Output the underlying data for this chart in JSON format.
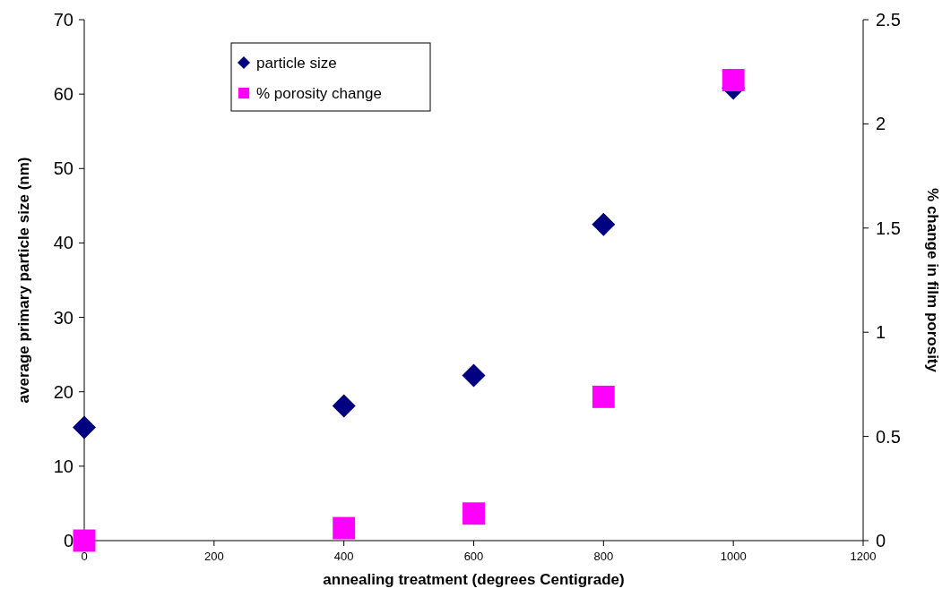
{
  "chart_data": {
    "type": "scatter",
    "xlabel": "annealing treatment (degrees Centigrade)",
    "ylabel": "average primary particle size (nm)",
    "y2label": "% change in film porosity",
    "xlim": [
      0,
      1200
    ],
    "xticks": [
      0,
      200,
      400,
      600,
      800,
      1000,
      1200
    ],
    "ylim": [
      0,
      70
    ],
    "yticks": [
      0,
      10,
      20,
      30,
      40,
      50,
      60,
      70
    ],
    "y2lim": [
      0,
      2.5
    ],
    "y2ticks": [
      0,
      0.5,
      1,
      1.5,
      2,
      2.5
    ],
    "legend": "top left",
    "grid": false,
    "x": [
      0,
      400,
      600,
      800,
      1000
    ],
    "series": [
      {
        "name": "particle size",
        "color": "#000080",
        "marker": "diamond",
        "values": [
          15.2,
          18.1,
          22.2,
          42.5,
          60.8
        ]
      },
      {
        "name": "% porosity change",
        "color": "#ff00ff",
        "marker": "square",
        "axis": "y2",
        "values": [
          0,
          0.06,
          0.13,
          0.69,
          2.21
        ]
      }
    ]
  }
}
